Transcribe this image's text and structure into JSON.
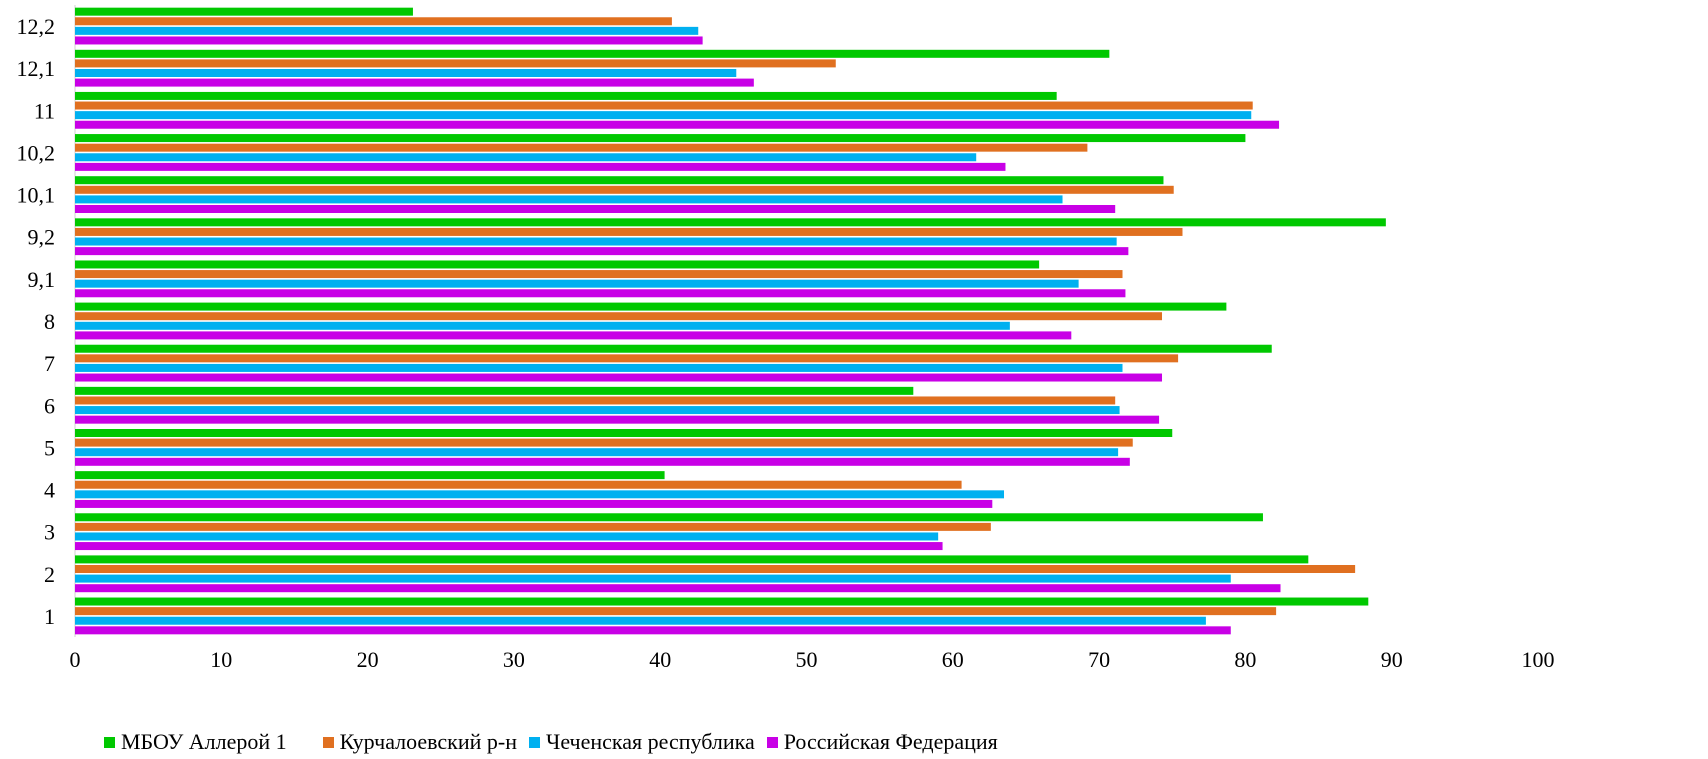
{
  "chart_data": {
    "type": "bar",
    "orientation": "horizontal",
    "categories": [
      "1",
      "2",
      "3",
      "4",
      "5",
      "6",
      "7",
      "8",
      "9,1",
      "9,2",
      "10,1",
      "10,2",
      "11",
      "12,1",
      "12,2"
    ],
    "series": [
      {
        "name": "МБОУ Аллерой 1",
        "color": "#00c800",
        "values": [
          88.4,
          84.3,
          81.2,
          40.3,
          75.0,
          57.3,
          81.8,
          78.7,
          65.9,
          89.6,
          74.4,
          80.0,
          67.1,
          70.7,
          23.1
        ]
      },
      {
        "name": "Курчалоевский р-н",
        "color": "#e07020",
        "values": [
          82.1,
          87.5,
          62.6,
          60.6,
          72.3,
          71.1,
          75.4,
          74.3,
          71.6,
          75.7,
          75.1,
          69.2,
          80.5,
          52.0,
          40.8
        ]
      },
      {
        "name": "Чеченская республика",
        "color": "#00b0f0",
        "values": [
          77.3,
          79.0,
          59.0,
          63.5,
          71.3,
          71.4,
          71.6,
          63.9,
          68.6,
          71.2,
          67.5,
          61.6,
          80.4,
          45.2,
          42.6
        ]
      },
      {
        "name": "Российская Федерация",
        "color": "#c800e6",
        "values": [
          79.0,
          82.4,
          59.3,
          62.7,
          72.1,
          74.1,
          74.3,
          68.1,
          71.8,
          72.0,
          71.1,
          63.6,
          82.3,
          46.4,
          42.9
        ]
      }
    ],
    "xlim": [
      0,
      100
    ],
    "xticks": [
      "0",
      "10",
      "20",
      "30",
      "40",
      "50",
      "60",
      "70",
      "80",
      "90",
      "100"
    ],
    "grid": false,
    "legend_position": "bottom-left",
    "title": "",
    "xlabel": "",
    "ylabel": ""
  }
}
